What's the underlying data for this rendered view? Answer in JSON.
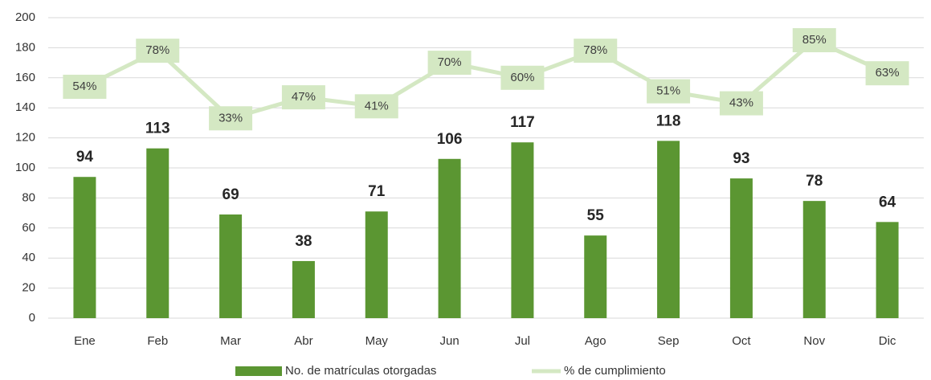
{
  "chart_data": {
    "type": "bar",
    "categories": [
      "Ene",
      "Feb",
      "Mar",
      "Abr",
      "May",
      "Jun",
      "Jul",
      "Ago",
      "Sep",
      "Oct",
      "Nov",
      "Dic"
    ],
    "ylim": [
      0,
      200
    ],
    "yticks": [
      0,
      20,
      40,
      60,
      80,
      100,
      120,
      140,
      160,
      180,
      200
    ],
    "grid": true,
    "y2lim": [
      -100,
      100
    ],
    "legend": "bottom",
    "series": [
      {
        "name": "No. de matrículas otorgadas",
        "type": "bar",
        "color": "#5b9632",
        "values": [
          94,
          113,
          69,
          38,
          71,
          106,
          117,
          55,
          118,
          93,
          78,
          64
        ]
      },
      {
        "name": "% de cumplimiento",
        "type": "line",
        "axis": "y2",
        "color": "#d4e8c3",
        "values": [
          54,
          78,
          33,
          47,
          41,
          70,
          60,
          78,
          51,
          43,
          85,
          63
        ],
        "value_labels": [
          "54%",
          "78%",
          "33%",
          "47%",
          "41%",
          "70%",
          "60%",
          "78%",
          "51%",
          "43%",
          "85%",
          "63%"
        ]
      }
    ]
  }
}
